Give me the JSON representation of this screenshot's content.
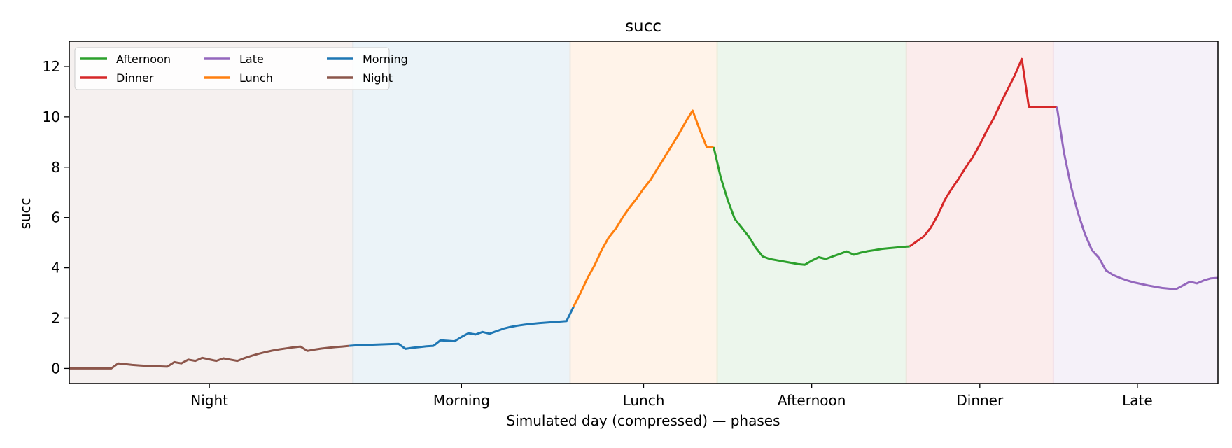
{
  "chart_data": {
    "type": "line",
    "title": "succ",
    "xlabel": "Simulated day (compressed) — phases",
    "ylabel": "succ",
    "x_range": [
      0,
      164
    ],
    "ylim": [
      -0.6,
      13.0
    ],
    "y_ticks": [
      0,
      2,
      4,
      6,
      8,
      10,
      12
    ],
    "grid": false,
    "legend": {
      "placement": "top-left",
      "columns": 3,
      "entries": [
        "Afternoon",
        "Dinner",
        "Late",
        "Lunch",
        "Morning",
        "Night"
      ]
    },
    "phases": [
      {
        "name": "Night",
        "start": 0,
        "end": 40,
        "color": "#8c564b"
      },
      {
        "name": "Morning",
        "start": 41,
        "end": 71,
        "color": "#1f77b4"
      },
      {
        "name": "Lunch",
        "start": 72,
        "end": 92,
        "color": "#ff7f0e"
      },
      {
        "name": "Afternoon",
        "start": 93,
        "end": 119,
        "color": "#2ca02c"
      },
      {
        "name": "Dinner",
        "start": 120,
        "end": 140,
        "color": "#d62728"
      },
      {
        "name": "Late",
        "start": 141,
        "end": 164,
        "color": "#9467bd"
      }
    ],
    "series": [
      {
        "name": "Night",
        "color": "#8c564b",
        "x": [
          0,
          1,
          2,
          3,
          4,
          5,
          6,
          7,
          8,
          9,
          10,
          11,
          12,
          13,
          14,
          15,
          16,
          17,
          18,
          19,
          20,
          21,
          22,
          23,
          24,
          25,
          26,
          27,
          28,
          29,
          30,
          31,
          32,
          33,
          34,
          35,
          36,
          37,
          38,
          39,
          40
        ],
        "y": [
          0,
          0,
          0,
          0,
          0,
          0,
          0,
          0.2,
          0.17,
          0.14,
          0.12,
          0.1,
          0.09,
          0.08,
          0.07,
          0.25,
          0.2,
          0.35,
          0.3,
          0.42,
          0.36,
          0.3,
          0.4,
          0.35,
          0.3,
          0.41,
          0.5,
          0.58,
          0.65,
          0.71,
          0.76,
          0.8,
          0.84,
          0.87,
          0.7,
          0.75,
          0.79,
          0.82,
          0.85,
          0.87,
          0.9
        ]
      },
      {
        "name": "Morning",
        "color": "#1f77b4",
        "x": [
          40,
          41,
          42,
          43,
          44,
          45,
          46,
          47,
          48,
          49,
          50,
          51,
          52,
          53,
          54,
          55,
          56,
          57,
          58,
          59,
          60,
          61,
          62,
          63,
          64,
          65,
          66,
          67,
          68,
          69,
          70,
          71,
          72
        ],
        "y": [
          0.9,
          0.92,
          0.93,
          0.94,
          0.95,
          0.96,
          0.97,
          0.98,
          0.78,
          0.82,
          0.85,
          0.88,
          0.9,
          1.12,
          1.1,
          1.08,
          1.25,
          1.4,
          1.35,
          1.45,
          1.38,
          1.48,
          1.58,
          1.65,
          1.7,
          1.74,
          1.77,
          1.8,
          1.82,
          1.84,
          1.86,
          1.88,
          2.45
        ]
      },
      {
        "name": "Lunch",
        "color": "#ff7f0e",
        "x": [
          72,
          73,
          74,
          75,
          76,
          77,
          78,
          79,
          80,
          81,
          82,
          83,
          84,
          85,
          86,
          87,
          88,
          89,
          90,
          91,
          92
        ],
        "y": [
          2.45,
          3.0,
          3.6,
          4.1,
          4.7,
          5.2,
          5.55,
          6.0,
          6.4,
          6.75,
          7.15,
          7.5,
          7.95,
          8.4,
          8.85,
          9.3,
          9.8,
          10.25,
          9.5,
          8.8,
          8.8
        ]
      },
      {
        "name": "Afternoon",
        "color": "#2ca02c",
        "x": [
          92,
          93,
          94,
          95,
          96,
          97,
          98,
          99,
          100,
          101,
          102,
          103,
          104,
          105,
          106,
          107,
          108,
          109,
          110,
          111,
          112,
          113,
          114,
          115,
          116,
          117,
          118,
          119,
          120
        ],
        "y": [
          8.8,
          7.6,
          6.7,
          5.95,
          5.6,
          5.25,
          4.8,
          4.45,
          4.35,
          4.3,
          4.25,
          4.2,
          4.15,
          4.12,
          4.28,
          4.42,
          4.35,
          4.45,
          4.55,
          4.65,
          4.52,
          4.6,
          4.66,
          4.7,
          4.75,
          4.78,
          4.8,
          4.83,
          4.85
        ]
      },
      {
        "name": "Dinner",
        "color": "#d62728",
        "x": [
          120,
          121,
          122,
          123,
          124,
          125,
          126,
          127,
          128,
          129,
          130,
          131,
          132,
          133,
          134,
          135,
          136,
          137,
          138,
          139,
          140,
          141
        ],
        "y": [
          4.85,
          5.05,
          5.25,
          5.6,
          6.1,
          6.7,
          7.15,
          7.55,
          8.0,
          8.4,
          8.9,
          9.45,
          9.95,
          10.55,
          11.1,
          11.65,
          12.3,
          10.4,
          10.4,
          10.4,
          10.4,
          10.4
        ]
      },
      {
        "name": "Late",
        "color": "#9467bd",
        "x": [
          141,
          142,
          143,
          144,
          145,
          146,
          147,
          148,
          149,
          150,
          151,
          152,
          153,
          154,
          155,
          156,
          157,
          158,
          159,
          160,
          161,
          162,
          163,
          164
        ],
        "y": [
          10.4,
          8.6,
          7.25,
          6.2,
          5.35,
          4.7,
          4.4,
          3.9,
          3.72,
          3.6,
          3.5,
          3.42,
          3.36,
          3.3,
          3.25,
          3.2,
          3.17,
          3.15,
          3.3,
          3.45,
          3.38,
          3.5,
          3.58,
          3.6
        ]
      }
    ]
  }
}
